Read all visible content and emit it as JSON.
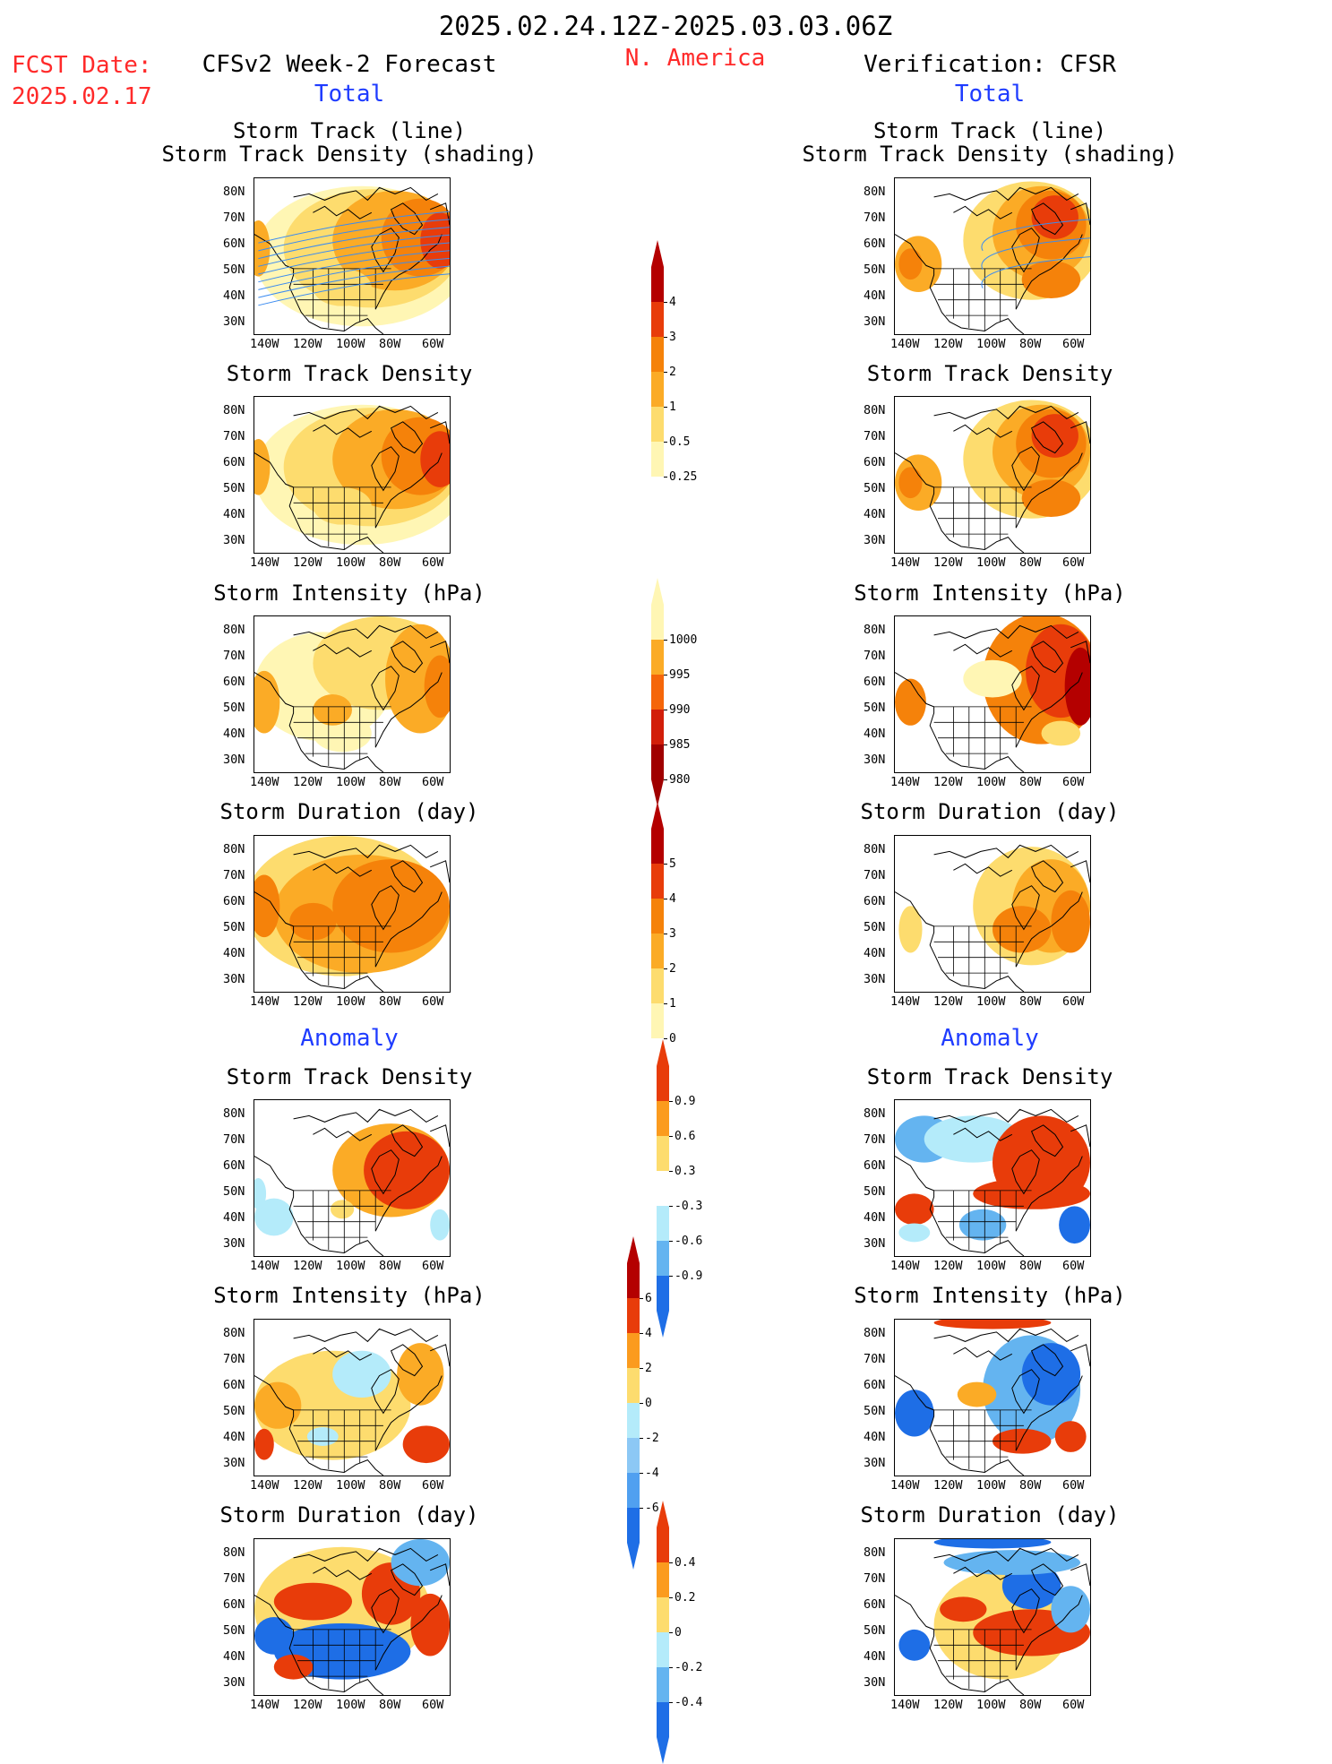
{
  "header": {
    "date_range": "2025.02.24.12Z-2025.03.03.06Z",
    "region": "N. America",
    "fcst_label": "FCST Date:",
    "fcst_date": "2025.02.17",
    "left_title": "CFSv2 Week-2 Forecast",
    "right_title": "Verification: CFSR"
  },
  "sections": {
    "total": "Total",
    "anomaly": "Anomaly"
  },
  "panels": {
    "p1": {
      "title1": "Storm Track (line)",
      "title2": "Storm Track Density (shading)"
    },
    "p2": {
      "title": "Storm Track Density"
    },
    "p3": {
      "title": "Storm Intensity (hPa)"
    },
    "p4": {
      "title": "Storm Duration (day)"
    },
    "p5": {
      "title": "Storm Track Density"
    },
    "p6": {
      "title": "Storm Intensity (hPa)"
    },
    "p7": {
      "title": "Storm Duration (day)"
    }
  },
  "axes": {
    "lat": [
      "80N",
      "70N",
      "60N",
      "50N",
      "40N",
      "30N"
    ],
    "lon": [
      "140W",
      "120W",
      "100W",
      "80W",
      "60W"
    ]
  },
  "colorbars": {
    "density": {
      "ticks": [
        "4",
        "3",
        "2",
        "1",
        "0.5",
        "0.25"
      ],
      "colors": [
        "#b40000",
        "#e83c0a",
        "#f5820a",
        "#fbab26",
        "#fddc6e",
        "#fff6b4"
      ]
    },
    "intensity": {
      "ticks": [
        "1000",
        "995",
        "990",
        "985",
        "980"
      ],
      "colors": [
        "#fff6b4",
        "#fbab26",
        "#f5660a",
        "#d21e0a",
        "#a00000"
      ]
    },
    "duration": {
      "ticks": [
        "5",
        "4",
        "3",
        "2",
        "1",
        "0"
      ],
      "colors": [
        "#b40000",
        "#e83c0a",
        "#f5820a",
        "#fbab26",
        "#fddc6e",
        "#fff6b4"
      ]
    },
    "dens_anom": {
      "ticks": [
        "0.9",
        "0.6",
        "0.3",
        "-0.3",
        "-0.6",
        "-0.9"
      ],
      "colors": [
        "#e83c0a",
        "#fb9b1e",
        "#fddc6e",
        "#ffffff",
        "#b4ebfa",
        "#64b4f0",
        "#1e6ee6"
      ]
    },
    "int_anom": {
      "ticks": [
        "6",
        "4",
        "2",
        "0",
        "-2",
        "-4",
        "-6"
      ],
      "colors": [
        "#b40000",
        "#e83c0a",
        "#fb9b1e",
        "#fddc6e",
        "#b4ebfa",
        "#8cc8f5",
        "#50a0f0",
        "#1e6ee6"
      ]
    },
    "dur_anom": {
      "ticks": [
        "0.4",
        "0.2",
        "0",
        "-0.2",
        "-0.4"
      ],
      "colors": [
        "#e83c0a",
        "#fb9b1e",
        "#fddc6e",
        "#b4ebfa",
        "#64b4f0",
        "#1e6ee6"
      ]
    }
  }
}
